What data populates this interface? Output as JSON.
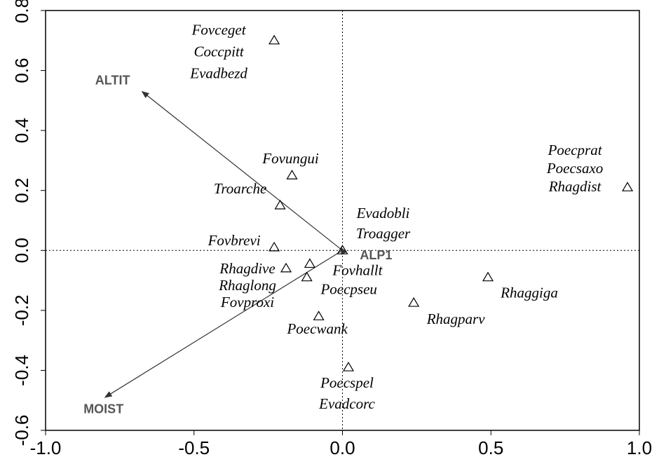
{
  "chart_data": {
    "type": "scatter",
    "xlim": [
      -1.0,
      1.0
    ],
    "ylim": [
      -0.6,
      0.8
    ],
    "xticks": [
      {
        "value": -1,
        "label": "-1.0"
      },
      -0.5,
      {
        "value": 0,
        "label": "0.0"
      },
      0.5,
      {
        "value": 1,
        "label": "1.0"
      }
    ],
    "yticks": [
      -0.6,
      -0.4,
      -0.2,
      {
        "value": 0,
        "label": "0.0"
      },
      0.2,
      0.4,
      0.6,
      0.8
    ],
    "color": "#000000",
    "x": [
      -0.23,
      -0.17,
      -0.21,
      -0.23,
      -0.19,
      -0.11,
      -0.12,
      -0.08,
      0.0,
      0.02,
      0.24,
      0.49,
      0.96
    ],
    "y": [
      0.7,
      0.25,
      0.15,
      0.01,
      -0.06,
      -0.045,
      -0.09,
      -0.22,
      0.0,
      -0.39,
      -0.175,
      -0.09,
      0.21
    ],
    "labels": [
      [
        "Fovceget",
        "Coccpitt",
        "Evadbezd"
      ],
      [
        "Fovungui"
      ],
      [
        "Troarche"
      ],
      [
        "Fovbrevi"
      ],
      [
        "Rhagdive",
        "Rhaglong",
        "Fovproxi"
      ],
      [
        "Fovhallt"
      ],
      [
        "Poecpseu"
      ],
      [
        "Poecwank"
      ],
      [
        "Evadobli",
        "Troagger"
      ],
      [
        "Poecspel",
        "Evadcorc"
      ],
      [
        "Rhagparv"
      ],
      [
        "Rhaggiga"
      ],
      [
        "Poecprat",
        "Poecsaxo",
        "Rhagdist"
      ]
    ],
    "arrows": [
      {
        "name": "ALTIT",
        "x": -0.675,
        "y": 0.53
      },
      {
        "name": "MOIST",
        "x": -0.8,
        "y": -0.49
      },
      {
        "name": "ALP1",
        "x": -0.005,
        "y": 0.01
      }
    ]
  }
}
